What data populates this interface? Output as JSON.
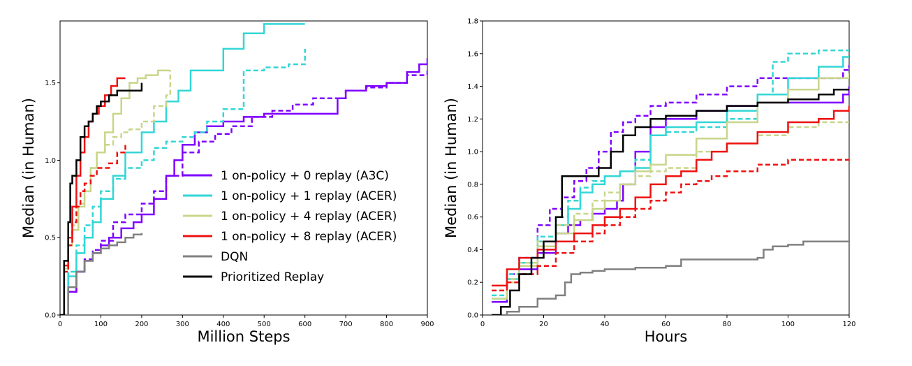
{
  "colors": {
    "a3c": "#7f00ff",
    "acer1": "#33d6d6",
    "acer4": "#c8d68a",
    "acer8": "#ee1111",
    "dqn": "#808080",
    "prioritized": "#000000"
  },
  "legend": [
    {
      "label": "1 on-policy + 0 replay (A3C)",
      "color_key": "a3c"
    },
    {
      "label": "1 on-policy + 1 replay (ACER)",
      "color_key": "acer1"
    },
    {
      "label": "1 on-policy + 4 replay (ACER)",
      "color_key": "acer4"
    },
    {
      "label": "1 on-policy + 8 replay (ACER)",
      "color_key": "acer8"
    },
    {
      "label": "DQN",
      "color_key": "dqn"
    },
    {
      "label": "Prioritized Replay",
      "color_key": "prioritized"
    }
  ],
  "chart_data": [
    {
      "type": "line",
      "xlabel": "Million Steps",
      "ylabel": "Median (in Human)",
      "xlim": [
        0,
        900
      ],
      "ylim": [
        0,
        1.9
      ],
      "xticks": [
        "0",
        "100",
        "200",
        "300",
        "400",
        "500",
        "600",
        "700",
        "800",
        "900"
      ],
      "yticks": [
        "0.0",
        "0.5",
        "1.0",
        "1.5"
      ],
      "grid": false,
      "legend_position": "bottom-right",
      "series": [
        {
          "color_key": "a3c",
          "dash": false,
          "x": [
            0,
            20,
            40,
            60,
            80,
            100,
            120,
            150,
            180,
            200,
            230,
            260,
            280,
            300,
            330,
            360,
            400,
            450,
            500,
            550,
            600,
            660,
            680,
            700,
            750,
            800,
            850,
            880,
            900
          ],
          "y": [
            0,
            0.15,
            0.28,
            0.35,
            0.4,
            0.45,
            0.5,
            0.56,
            0.6,
            0.65,
            0.75,
            0.9,
            1.0,
            1.1,
            1.18,
            1.22,
            1.25,
            1.28,
            1.3,
            1.3,
            1.3,
            1.3,
            1.4,
            1.45,
            1.48,
            1.5,
            1.57,
            1.62,
            1.66
          ]
        },
        {
          "color_key": "a3c",
          "dash": true,
          "x": [
            0,
            20,
            40,
            60,
            80,
            100,
            130,
            160,
            200,
            230,
            260,
            300,
            340,
            380,
            420,
            470,
            520,
            570,
            620,
            700,
            750,
            800,
            850,
            900
          ],
          "y": [
            0,
            0.15,
            0.28,
            0.36,
            0.42,
            0.48,
            0.6,
            0.65,
            0.72,
            0.8,
            0.9,
            1.05,
            1.12,
            1.17,
            1.22,
            1.28,
            1.32,
            1.36,
            1.4,
            1.45,
            1.47,
            1.5,
            1.55,
            1.59
          ]
        },
        {
          "color_key": "acer1",
          "dash": false,
          "x": [
            0,
            20,
            40,
            60,
            80,
            100,
            130,
            160,
            200,
            230,
            260,
            290,
            320,
            350,
            400,
            450,
            500,
            600
          ],
          "y": [
            0,
            0.25,
            0.4,
            0.5,
            0.6,
            0.75,
            0.9,
            1.05,
            1.18,
            1.25,
            1.38,
            1.45,
            1.58,
            1.58,
            1.72,
            1.82,
            1.88,
            1.88
          ]
        },
        {
          "color_key": "acer1",
          "dash": true,
          "x": [
            0,
            20,
            40,
            60,
            80,
            100,
            130,
            160,
            200,
            230,
            260,
            300,
            330,
            360,
            400,
            450,
            500,
            560,
            600
          ],
          "y": [
            0,
            0.28,
            0.45,
            0.58,
            0.7,
            0.8,
            0.88,
            0.95,
            1.0,
            1.08,
            1.12,
            1.15,
            1.18,
            1.25,
            1.33,
            1.58,
            1.6,
            1.62,
            1.72
          ]
        },
        {
          "color_key": "acer4",
          "dash": false,
          "x": [
            0,
            10,
            20,
            30,
            45,
            60,
            75,
            90,
            110,
            130,
            150,
            170,
            190,
            210,
            240,
            270
          ],
          "y": [
            0,
            0.3,
            0.45,
            0.55,
            0.7,
            0.8,
            0.95,
            1.05,
            1.18,
            1.3,
            1.4,
            1.5,
            1.53,
            1.55,
            1.58,
            1.58
          ]
        },
        {
          "color_key": "acer4",
          "dash": true,
          "x": [
            0,
            10,
            20,
            30,
            45,
            60,
            75,
            90,
            110,
            130,
            150,
            170,
            200,
            230,
            260,
            270
          ],
          "y": [
            0,
            0.28,
            0.45,
            0.58,
            0.72,
            0.85,
            0.95,
            1.05,
            1.1,
            1.15,
            1.18,
            1.2,
            1.25,
            1.35,
            1.42,
            1.58
          ]
        },
        {
          "color_key": "acer8",
          "dash": false,
          "x": [
            0,
            10,
            20,
            30,
            40,
            50,
            60,
            70,
            80,
            95,
            110,
            125,
            140,
            150,
            160
          ],
          "y": [
            0,
            0.32,
            0.5,
            0.7,
            0.9,
            1.05,
            1.15,
            1.25,
            1.3,
            1.35,
            1.42,
            1.48,
            1.53,
            1.53,
            1.53
          ]
        },
        {
          "color_key": "acer8",
          "dash": true,
          "x": [
            0,
            10,
            20,
            30,
            40,
            50,
            60,
            75,
            90,
            105,
            120,
            140,
            160
          ],
          "y": [
            0,
            0.28,
            0.45,
            0.6,
            0.7,
            0.8,
            0.85,
            0.9,
            0.95,
            0.95,
            0.98,
            1.05,
            1.1
          ]
        },
        {
          "color_key": "dqn",
          "dash": false,
          "x": [
            0,
            20,
            40,
            60,
            80,
            100,
            120,
            140,
            160,
            180,
            200
          ],
          "y": [
            0,
            0.18,
            0.28,
            0.35,
            0.4,
            0.43,
            0.45,
            0.47,
            0.5,
            0.52,
            0.53
          ]
        },
        {
          "color_key": "prioritized",
          "dash": false,
          "x": [
            0,
            10,
            20,
            25,
            30,
            40,
            50,
            60,
            70,
            80,
            90,
            100,
            120,
            140,
            160,
            180,
            200
          ],
          "y": [
            0,
            0.35,
            0.6,
            0.85,
            0.9,
            1.0,
            1.15,
            1.22,
            1.25,
            1.3,
            1.35,
            1.38,
            1.42,
            1.45,
            1.45,
            1.45,
            1.5
          ]
        }
      ]
    },
    {
      "type": "line",
      "xlabel": "Hours",
      "ylabel": "Median (in Human)",
      "xlim": [
        0,
        120
      ],
      "ylim": [
        0,
        1.8
      ],
      "xticks": [
        "0",
        "20",
        "40",
        "60",
        "80",
        "100",
        "120"
      ],
      "yticks": [
        "0.0",
        "0.2",
        "0.4",
        "0.6",
        "0.8",
        "1.0",
        "1.2",
        "1.4",
        "1.6",
        "1.8"
      ],
      "grid": false,
      "series": [
        {
          "color_key": "a3c",
          "dash": false,
          "x": [
            3,
            8,
            12,
            18,
            24,
            28,
            32,
            36,
            40,
            44,
            46,
            50,
            55,
            60,
            70,
            80,
            90,
            100,
            110,
            118,
            120
          ],
          "y": [
            0.08,
            0.2,
            0.28,
            0.38,
            0.5,
            0.55,
            0.58,
            0.62,
            0.65,
            0.7,
            0.8,
            1.0,
            1.15,
            1.2,
            1.25,
            1.28,
            1.3,
            1.3,
            1.3,
            1.35,
            1.4
          ]
        },
        {
          "color_key": "a3c",
          "dash": true,
          "x": [
            3,
            8,
            12,
            18,
            22,
            26,
            30,
            34,
            38,
            42,
            46,
            50,
            55,
            60,
            70,
            80,
            90,
            100,
            110,
            118,
            120
          ],
          "y": [
            0.08,
            0.25,
            0.35,
            0.55,
            0.65,
            0.72,
            0.82,
            0.9,
            1.0,
            1.12,
            1.18,
            1.22,
            1.28,
            1.3,
            1.35,
            1.4,
            1.45,
            1.45,
            1.45,
            1.5,
            1.53
          ]
        },
        {
          "color_key": "acer1",
          "dash": false,
          "x": [
            3,
            8,
            12,
            18,
            24,
            28,
            32,
            36,
            40,
            45,
            50,
            55,
            60,
            70,
            80,
            90,
            100,
            110,
            118,
            120
          ],
          "y": [
            0.1,
            0.22,
            0.32,
            0.45,
            0.55,
            0.65,
            0.75,
            0.8,
            0.85,
            0.88,
            0.9,
            1.1,
            1.15,
            1.18,
            1.25,
            1.35,
            1.45,
            1.52,
            1.58,
            1.58
          ]
        },
        {
          "color_key": "acer1",
          "dash": true,
          "x": [
            3,
            8,
            12,
            18,
            24,
            28,
            32,
            36,
            40,
            45,
            50,
            55,
            60,
            70,
            80,
            90,
            95,
            100,
            110,
            120
          ],
          "y": [
            0.12,
            0.25,
            0.35,
            0.48,
            0.6,
            0.7,
            0.78,
            0.82,
            0.85,
            0.88,
            0.95,
            1.1,
            1.12,
            1.15,
            1.2,
            1.35,
            1.55,
            1.6,
            1.62,
            1.62
          ]
        },
        {
          "color_key": "acer4",
          "dash": false,
          "x": [
            3,
            8,
            12,
            18,
            24,
            30,
            36,
            40,
            45,
            50,
            55,
            60,
            70,
            80,
            90,
            100,
            110,
            120
          ],
          "y": [
            0.1,
            0.2,
            0.3,
            0.42,
            0.5,
            0.58,
            0.65,
            0.7,
            0.8,
            0.88,
            0.92,
            0.98,
            1.08,
            1.18,
            1.3,
            1.38,
            1.45,
            1.48
          ]
        },
        {
          "color_key": "acer4",
          "dash": true,
          "x": [
            3,
            8,
            12,
            18,
            24,
            30,
            36,
            40,
            45,
            50,
            55,
            60,
            70,
            80,
            90,
            100,
            110,
            120
          ],
          "y": [
            0.1,
            0.22,
            0.32,
            0.45,
            0.55,
            0.62,
            0.7,
            0.75,
            0.8,
            0.85,
            0.88,
            0.9,
            1.0,
            1.05,
            1.1,
            1.15,
            1.18,
            1.18
          ]
        },
        {
          "color_key": "acer8",
          "dash": false,
          "x": [
            3,
            8,
            12,
            18,
            24,
            30,
            36,
            40,
            45,
            50,
            55,
            60,
            65,
            70,
            75,
            80,
            90,
            100,
            110,
            115,
            120
          ],
          "y": [
            0.18,
            0.28,
            0.35,
            0.4,
            0.45,
            0.5,
            0.55,
            0.6,
            0.65,
            0.72,
            0.8,
            0.85,
            0.88,
            0.95,
            1.0,
            1.05,
            1.12,
            1.18,
            1.2,
            1.25,
            1.28
          ]
        },
        {
          "color_key": "acer8",
          "dash": true,
          "x": [
            3,
            8,
            12,
            18,
            24,
            30,
            36,
            40,
            45,
            50,
            55,
            60,
            65,
            70,
            75,
            80,
            90,
            100,
            110,
            120
          ],
          "y": [
            0.15,
            0.2,
            0.25,
            0.3,
            0.38,
            0.45,
            0.5,
            0.55,
            0.6,
            0.65,
            0.7,
            0.75,
            0.8,
            0.82,
            0.85,
            0.88,
            0.92,
            0.95,
            0.95,
            0.95
          ]
        },
        {
          "color_key": "dqn",
          "dash": false,
          "x": [
            3,
            8,
            12,
            18,
            24,
            27,
            29,
            32,
            36,
            40,
            45,
            50,
            55,
            60,
            65,
            70,
            80,
            90,
            92,
            95,
            100,
            105,
            110,
            120
          ],
          "y": [
            0,
            0.02,
            0.05,
            0.1,
            0.12,
            0.2,
            0.25,
            0.26,
            0.27,
            0.28,
            0.28,
            0.29,
            0.29,
            0.3,
            0.34,
            0.34,
            0.34,
            0.35,
            0.4,
            0.42,
            0.43,
            0.45,
            0.45,
            0.45
          ]
        },
        {
          "color_key": "prioritized",
          "dash": false,
          "x": [
            3,
            6,
            9,
            12,
            16,
            20,
            24,
            26,
            30,
            34,
            38,
            42,
            46,
            50,
            55,
            60,
            70,
            80,
            90,
            100,
            110,
            115,
            120
          ],
          "y": [
            0,
            0.05,
            0.15,
            0.25,
            0.35,
            0.45,
            0.6,
            0.85,
            0.85,
            0.85,
            0.9,
            1.0,
            1.1,
            1.15,
            1.2,
            1.22,
            1.25,
            1.28,
            1.3,
            1.32,
            1.35,
            1.38,
            1.38
          ]
        }
      ]
    }
  ]
}
